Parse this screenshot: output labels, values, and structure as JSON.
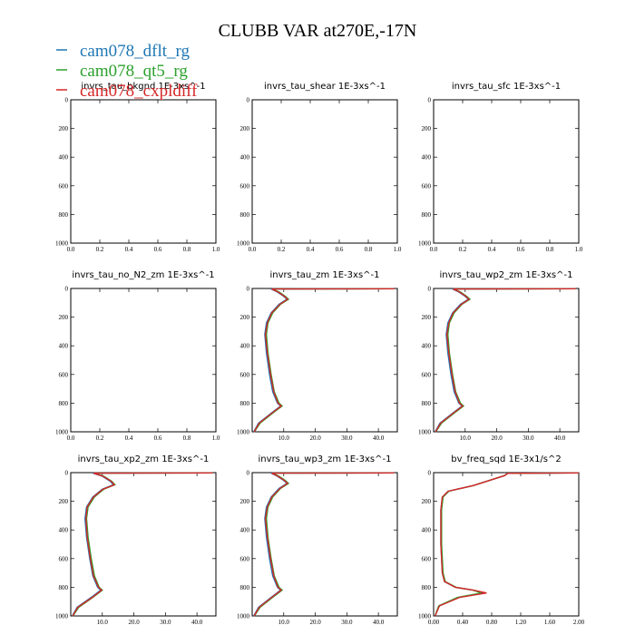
{
  "figure_title": "CLUBB VAR at270E,-17N",
  "legend": [
    {
      "label": "cam078_dflt_rg",
      "color": "#1f77b4"
    },
    {
      "label": "cam078_qt5_rg",
      "color": "#2ca02c"
    },
    {
      "label": "cam078_cxpldiff",
      "color": "#d62728"
    }
  ],
  "chart_data": [
    {
      "type": "line",
      "title": "invrs_tau_bkgnd",
      "units": "1E-3xs^-1",
      "xlim": [
        0,
        1
      ],
      "ylim": [
        1000,
        0
      ],
      "xticks": [
        "0.0",
        "0.2",
        "0.4",
        "0.6",
        "0.8",
        "1.0"
      ],
      "yticks": [
        "0",
        "200",
        "400",
        "600",
        "800",
        "1000"
      ],
      "series": []
    },
    {
      "type": "line",
      "title": "invrs_tau_shear",
      "units": "1E-3xs^-1",
      "xlim": [
        0,
        1
      ],
      "ylim": [
        1000,
        0
      ],
      "xticks": [
        "0.0",
        "0.2",
        "0.4",
        "0.6",
        "0.8",
        "1.0"
      ],
      "yticks": [
        "0",
        "200",
        "400",
        "600",
        "800",
        "1000"
      ],
      "series": []
    },
    {
      "type": "line",
      "title": "invrs_tau_sfc",
      "units": "1E-3xs^-1",
      "xlim": [
        0,
        1
      ],
      "ylim": [
        1000,
        0
      ],
      "xticks": [
        "0.0",
        "0.2",
        "0.4",
        "0.6",
        "0.8",
        "1.0"
      ],
      "yticks": [
        "0",
        "200",
        "400",
        "600",
        "800",
        "1000"
      ],
      "series": []
    },
    {
      "type": "line",
      "title": "invrs_tau_no_N2_zm",
      "units": "1E-3xs^-1",
      "xlim": [
        0,
        1
      ],
      "ylim": [
        1000,
        0
      ],
      "xticks": [
        "0.0",
        "0.2",
        "0.4",
        "0.6",
        "0.8",
        "1.0"
      ],
      "yticks": [
        "0",
        "200",
        "400",
        "600",
        "800",
        "1000"
      ],
      "series": []
    },
    {
      "type": "line",
      "title": "invrs_tau_zm",
      "units": "1E-3xs^-1",
      "xlim": [
        0,
        46
      ],
      "ylim": [
        1000,
        0
      ],
      "xticks": [
        "10.0",
        "20.0",
        "30.0",
        "40.0"
      ],
      "xtickvals": [
        10,
        20,
        30,
        40
      ],
      "yticks": [
        "0",
        "200",
        "400",
        "600",
        "800",
        "1000"
      ],
      "series": [
        {
          "color": "#1f77b4",
          "x": [
            45,
            6,
            8,
            10,
            11,
            8.5,
            6,
            4.5,
            4,
            4.5,
            5.5,
            6.5,
            8,
            9,
            6,
            2,
            0.5
          ],
          "y": [
            2,
            4,
            25,
            55,
            75,
            110,
            170,
            240,
            320,
            450,
            600,
            720,
            800,
            820,
            870,
            940,
            1000
          ]
        },
        {
          "color": "#2ca02c",
          "x": [
            45,
            6.5,
            8.5,
            10.5,
            11.5,
            9,
            6.5,
            5,
            4.5,
            5,
            6,
            7,
            8.5,
            9.5,
            6.5,
            2.5,
            0.7
          ],
          "y": [
            2,
            4,
            25,
            55,
            75,
            110,
            170,
            240,
            320,
            450,
            600,
            720,
            800,
            820,
            870,
            940,
            1000
          ]
        },
        {
          "color": "#d62728",
          "x": [
            45,
            6.2,
            8.2,
            10.2,
            11.2,
            8.8,
            6.2,
            4.8,
            4.2,
            4.8,
            5.8,
            6.8,
            8.2,
            9.2,
            6.2,
            2.2,
            0.6
          ],
          "y": [
            2,
            4,
            25,
            55,
            75,
            110,
            170,
            240,
            320,
            450,
            600,
            720,
            800,
            820,
            870,
            940,
            1000
          ]
        }
      ]
    },
    {
      "type": "line",
      "title": "invrs_tau_wp2_zm",
      "units": "1E-3xs^-1",
      "xlim": [
        0,
        46
      ],
      "ylim": [
        1000,
        0
      ],
      "xticks": [
        "10.0",
        "20.0",
        "30.0",
        "40.0"
      ],
      "xtickvals": [
        10,
        20,
        30,
        40
      ],
      "yticks": [
        "0",
        "200",
        "400",
        "600",
        "800",
        "1000"
      ],
      "series": [
        {
          "color": "#1f77b4",
          "x": [
            45,
            6,
            8,
            10,
            11,
            8.5,
            6,
            4.5,
            4,
            4.5,
            5.5,
            6.5,
            8,
            9,
            6,
            2,
            0.5
          ],
          "y": [
            2,
            4,
            25,
            55,
            75,
            110,
            170,
            240,
            320,
            450,
            600,
            720,
            800,
            820,
            870,
            940,
            1000
          ]
        },
        {
          "color": "#2ca02c",
          "x": [
            45,
            6.5,
            8.5,
            10.5,
            11.5,
            9,
            6.5,
            5,
            4.5,
            5,
            6,
            7,
            8.5,
            9.5,
            6.5,
            2.5,
            0.7
          ],
          "y": [
            2,
            4,
            25,
            55,
            75,
            110,
            170,
            240,
            320,
            450,
            600,
            720,
            800,
            820,
            870,
            940,
            1000
          ]
        },
        {
          "color": "#d62728",
          "x": [
            45,
            6.2,
            8.2,
            10.2,
            11.2,
            8.8,
            6.2,
            4.8,
            4.2,
            4.8,
            5.8,
            6.8,
            8.2,
            9.2,
            6.2,
            2.2,
            0.6
          ],
          "y": [
            2,
            4,
            25,
            55,
            75,
            110,
            170,
            240,
            320,
            450,
            600,
            720,
            800,
            820,
            870,
            940,
            1000
          ]
        }
      ]
    },
    {
      "type": "line",
      "title": "invrs_tau_xp2_zm",
      "units": "1E-3xs^-1",
      "xlim": [
        0,
        46
      ],
      "ylim": [
        1000,
        0
      ],
      "xticks": [
        "10.0",
        "20.0",
        "30.0",
        "40.0"
      ],
      "xtickvals": [
        10,
        20,
        30,
        40
      ],
      "yticks": [
        "0",
        "200",
        "400",
        "600",
        "800",
        "1000"
      ],
      "series": [
        {
          "color": "#1f77b4",
          "x": [
            45,
            7,
            10,
            12.5,
            13.5,
            10,
            7,
            5,
            4.5,
            5,
            6,
            7,
            8.5,
            9.5,
            6.5,
            2,
            0.5
          ],
          "y": [
            2,
            4,
            25,
            60,
            85,
            115,
            170,
            240,
            320,
            450,
            600,
            720,
            800,
            820,
            870,
            940,
            1000
          ]
        },
        {
          "color": "#2ca02c",
          "x": [
            45,
            7.5,
            10.5,
            13,
            14,
            10.5,
            7.5,
            5.5,
            5,
            5.5,
            6.5,
            7.5,
            9,
            10,
            7,
            2.5,
            0.7
          ],
          "y": [
            2,
            4,
            25,
            60,
            85,
            115,
            170,
            240,
            320,
            450,
            600,
            720,
            800,
            820,
            870,
            940,
            1000
          ]
        },
        {
          "color": "#d62728",
          "x": [
            45,
            7.2,
            10.2,
            12.8,
            13.8,
            10.2,
            7.2,
            5.2,
            4.8,
            5.2,
            6.2,
            7.2,
            8.8,
            9.8,
            6.8,
            2.2,
            0.6
          ],
          "y": [
            2,
            4,
            25,
            60,
            85,
            115,
            170,
            240,
            320,
            450,
            600,
            720,
            800,
            820,
            870,
            940,
            1000
          ]
        }
      ]
    },
    {
      "type": "line",
      "title": "invrs_tau_wp3_zm",
      "units": "1E-3xs^-1",
      "xlim": [
        0,
        46
      ],
      "ylim": [
        1000,
        0
      ],
      "xticks": [
        "10.0",
        "20.0",
        "30.0",
        "40.0"
      ],
      "xtickvals": [
        10,
        20,
        30,
        40
      ],
      "yticks": [
        "0",
        "200",
        "400",
        "600",
        "800",
        "1000"
      ],
      "series": [
        {
          "color": "#1f77b4",
          "x": [
            45,
            6,
            8,
            10,
            11,
            8.5,
            6,
            4.5,
            4,
            4.5,
            5.5,
            6.5,
            8,
            9,
            6,
            2,
            0.5
          ],
          "y": [
            2,
            4,
            25,
            55,
            75,
            110,
            170,
            240,
            320,
            450,
            600,
            720,
            800,
            820,
            870,
            940,
            1000
          ]
        },
        {
          "color": "#2ca02c",
          "x": [
            45,
            6.5,
            8.5,
            10.5,
            11.5,
            9,
            6.5,
            5,
            4.5,
            5,
            6,
            7,
            8.5,
            9.5,
            6.5,
            2.5,
            0.7
          ],
          "y": [
            2,
            4,
            25,
            55,
            75,
            110,
            170,
            240,
            320,
            450,
            600,
            720,
            800,
            820,
            870,
            940,
            1000
          ]
        },
        {
          "color": "#d62728",
          "x": [
            45,
            6.2,
            8.2,
            10.2,
            11.2,
            8.8,
            6.2,
            4.8,
            4.2,
            4.8,
            5.8,
            6.8,
            8.2,
            9.2,
            6.2,
            2.2,
            0.6
          ],
          "y": [
            2,
            4,
            25,
            55,
            75,
            110,
            170,
            240,
            320,
            450,
            600,
            720,
            800,
            820,
            870,
            940,
            1000
          ]
        }
      ]
    },
    {
      "type": "line",
      "title": "bv_freq_sqd",
      "units": "1E-3x1/s^2",
      "xlim": [
        0,
        2
      ],
      "ylim": [
        1000,
        0
      ],
      "xticks": [
        "0.00",
        "0.40",
        "0.80",
        "1.20",
        "1.60",
        "2.00"
      ],
      "xtickvals": [
        0,
        0.4,
        0.8,
        1.2,
        1.6,
        2.0
      ],
      "yticks": [
        "0",
        "200",
        "400",
        "600",
        "800",
        "1000"
      ],
      "series": [
        {
          "color": "#1f77b4",
          "x": [
            2.0,
            1.02,
            0.98,
            0.55,
            0.2,
            0.12,
            0.1,
            0.1,
            0.12,
            0.15,
            0.3,
            0.55,
            0.7,
            0.35,
            0.08,
            0.02
          ],
          "y": [
            2,
            5,
            20,
            90,
            130,
            170,
            260,
            500,
            700,
            760,
            800,
            820,
            840,
            870,
            930,
            1000
          ]
        },
        {
          "color": "#2ca02c",
          "x": [
            2.0,
            1.02,
            0.98,
            0.55,
            0.21,
            0.13,
            0.11,
            0.11,
            0.13,
            0.16,
            0.31,
            0.54,
            0.66,
            0.33,
            0.07,
            0.02
          ],
          "y": [
            2,
            5,
            20,
            90,
            130,
            170,
            260,
            500,
            700,
            760,
            800,
            820,
            840,
            870,
            930,
            1000
          ]
        },
        {
          "color": "#d62728",
          "x": [
            2.0,
            1.02,
            0.98,
            0.55,
            0.2,
            0.12,
            0.1,
            0.1,
            0.12,
            0.15,
            0.3,
            0.55,
            0.73,
            0.36,
            0.08,
            0.02
          ],
          "y": [
            2,
            5,
            20,
            90,
            130,
            170,
            260,
            500,
            700,
            760,
            800,
            820,
            840,
            870,
            930,
            1000
          ]
        }
      ]
    }
  ]
}
